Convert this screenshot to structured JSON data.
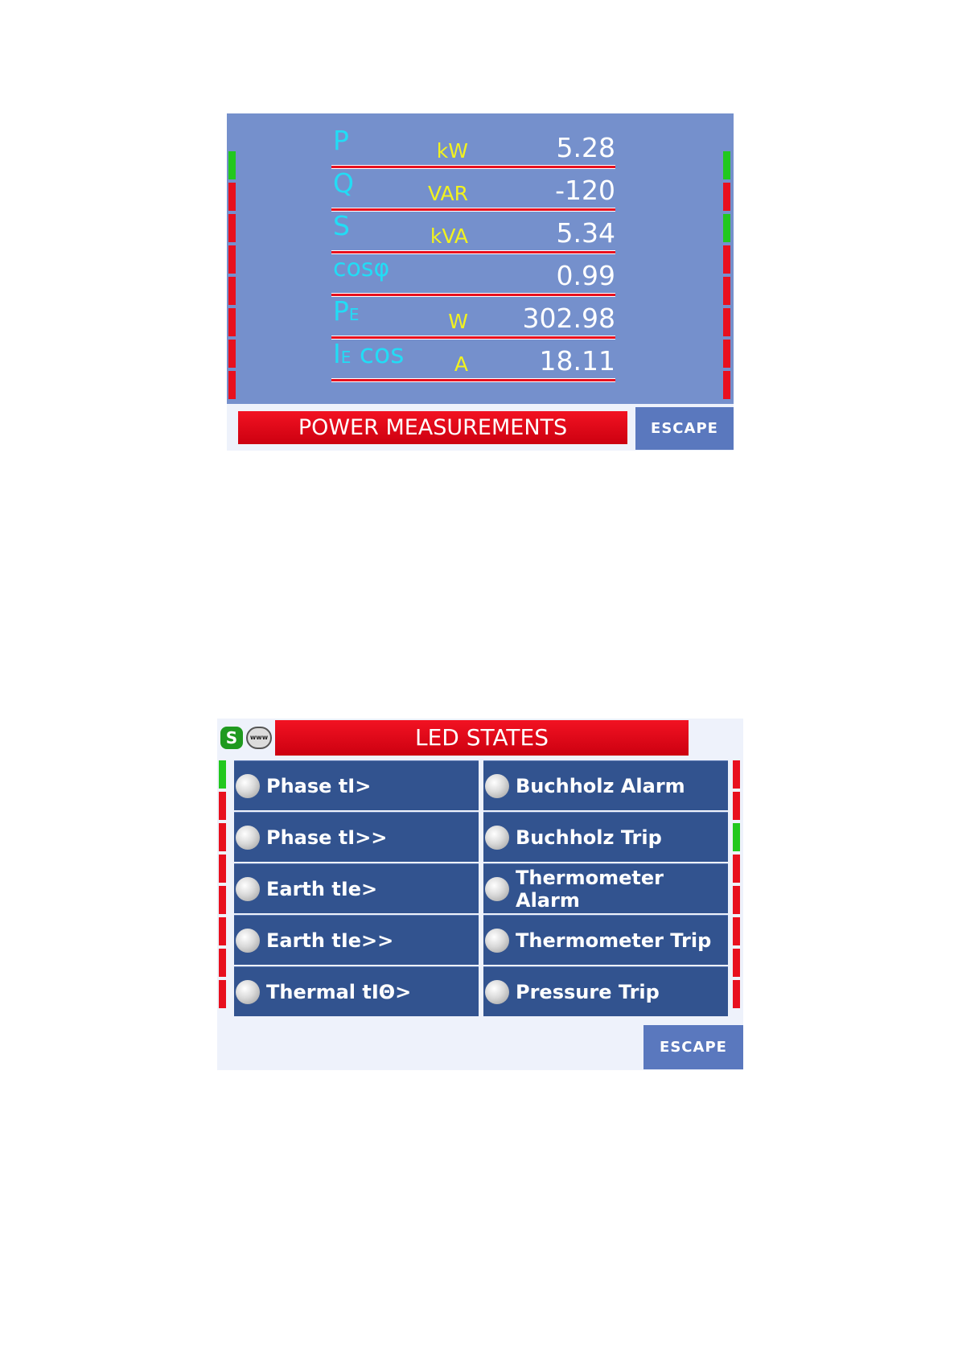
{
  "power_measurements": {
    "title": "POWER MEASUREMENTS",
    "escape_label": "ESCAPE",
    "rows": [
      {
        "symbol": "P",
        "sub": "",
        "unit": "kW",
        "value": "5.28"
      },
      {
        "symbol": "Q",
        "sub": "",
        "unit": "VAR",
        "value": "-120"
      },
      {
        "symbol": "S",
        "sub": "",
        "unit": "kVA",
        "value": "5.34"
      },
      {
        "symbol": "cosφ",
        "sub": "",
        "unit": "",
        "value": "0.99"
      },
      {
        "symbol": "P",
        "sub": "E",
        "unit": "W",
        "value": "302.98"
      },
      {
        "symbol": "I",
        "sub": "E",
        "symbol_suffix": " cos",
        "unit": "A",
        "value": "18.11"
      }
    ],
    "left_leds": [
      "green",
      "red",
      "red",
      "red",
      "red",
      "red",
      "red",
      "red"
    ],
    "right_leds": [
      "green",
      "red",
      "green",
      "red",
      "red",
      "red",
      "red",
      "red"
    ],
    "led_colors": {
      "red": "#e8101e",
      "green": "#22c81e"
    }
  },
  "led_states": {
    "title": "LED STATES",
    "s_icon": "S",
    "www_icon": "www",
    "escape_label": "ESCAPE",
    "cells": [
      {
        "label": "Phase tI>"
      },
      {
        "label": "Buchholz Alarm"
      },
      {
        "label": "Phase tI>>"
      },
      {
        "label": "Buchholz Trip"
      },
      {
        "label": "Earth tIe>"
      },
      {
        "label": "Thermometer Alarm"
      },
      {
        "label": "Earth tIe>>"
      },
      {
        "label": "Thermometer Trip"
      },
      {
        "label": "Thermal tIΘ>"
      },
      {
        "label": "Pressure Trip"
      }
    ],
    "left_leds": [
      "green",
      "red",
      "red",
      "red",
      "red",
      "red",
      "red",
      "red"
    ],
    "right_leds": [
      "red",
      "red",
      "green",
      "red",
      "red",
      "red",
      "red",
      "red"
    ]
  }
}
